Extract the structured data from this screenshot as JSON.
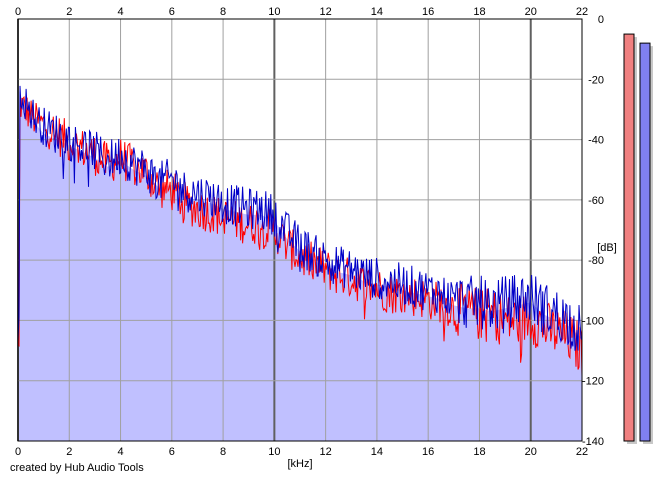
{
  "chart_data": {
    "type": "area",
    "xlabel": "[kHz]",
    "ylabel": "[dB]",
    "xlim": [
      0,
      22
    ],
    "ylim": [
      -140,
      0
    ],
    "x_ticks": [
      0,
      2,
      4,
      6,
      8,
      10,
      12,
      14,
      16,
      18,
      20,
      22
    ],
    "y_ticks": [
      0,
      -20,
      -40,
      -60,
      -80,
      -100,
      -120,
      -140
    ],
    "grid": true,
    "credit": "created by Hub Audio Tools",
    "series": [
      {
        "color": "#ff0000",
        "points": [
          [
            0.05,
            -28
          ],
          [
            0.3,
            -30
          ],
          [
            0.6,
            -33
          ],
          [
            1,
            -35
          ],
          [
            1.5,
            -38
          ],
          [
            2,
            -41
          ],
          [
            2.5,
            -43
          ],
          [
            3,
            -45
          ],
          [
            3.5,
            -48
          ],
          [
            4,
            -46
          ],
          [
            4.5,
            -49
          ],
          [
            5,
            -51
          ],
          [
            5.5,
            -56
          ],
          [
            6,
            -57
          ],
          [
            6.5,
            -61
          ],
          [
            7,
            -63
          ],
          [
            7.5,
            -64
          ],
          [
            8,
            -66
          ],
          [
            8.5,
            -67
          ],
          [
            9,
            -68
          ],
          [
            9.5,
            -68
          ],
          [
            10,
            -70
          ],
          [
            10.5,
            -75
          ],
          [
            11,
            -79
          ],
          [
            11.5,
            -81
          ],
          [
            12,
            -83
          ],
          [
            12.5,
            -85
          ],
          [
            13,
            -86
          ],
          [
            13.5,
            -88
          ],
          [
            14,
            -89
          ],
          [
            14.5,
            -91
          ],
          [
            15,
            -91
          ],
          [
            15.5,
            -92
          ],
          [
            16,
            -93
          ],
          [
            16.5,
            -94
          ],
          [
            17,
            -96
          ],
          [
            17.5,
            -97
          ],
          [
            18,
            -98
          ],
          [
            18.5,
            -98
          ],
          [
            19,
            -100
          ],
          [
            19.5,
            -100
          ],
          [
            20,
            -99
          ],
          [
            20.5,
            -102
          ],
          [
            21,
            -104
          ],
          [
            21.5,
            -106
          ],
          [
            22,
            -110
          ]
        ]
      },
      {
        "color": "#0000c8",
        "points": [
          [
            0.05,
            -22
          ],
          [
            0.3,
            -28
          ],
          [
            0.6,
            -32
          ],
          [
            1,
            -36
          ],
          [
            1.5,
            -38
          ],
          [
            2,
            -40
          ],
          [
            2.5,
            -42
          ],
          [
            3,
            -44
          ],
          [
            3.5,
            -47
          ],
          [
            4,
            -45
          ],
          [
            4.5,
            -48
          ],
          [
            5,
            -50
          ],
          [
            5.5,
            -54
          ],
          [
            6,
            -53
          ],
          [
            6.5,
            -57
          ],
          [
            7,
            -58
          ],
          [
            7.5,
            -59
          ],
          [
            8,
            -61
          ],
          [
            8.5,
            -62
          ],
          [
            9,
            -63
          ],
          [
            9.5,
            -63
          ],
          [
            10,
            -65
          ],
          [
            10.5,
            -71
          ],
          [
            11,
            -75
          ],
          [
            11.5,
            -78
          ],
          [
            12,
            -80
          ],
          [
            12.5,
            -82
          ],
          [
            13,
            -83
          ],
          [
            13.5,
            -85
          ],
          [
            14,
            -86
          ],
          [
            14.5,
            -87
          ],
          [
            15,
            -88
          ],
          [
            15.5,
            -89
          ],
          [
            16,
            -90
          ],
          [
            16.5,
            -91
          ],
          [
            17,
            -93
          ],
          [
            17.5,
            -94
          ],
          [
            18,
            -94
          ],
          [
            18.5,
            -95
          ],
          [
            19,
            -94
          ],
          [
            19.5,
            -93
          ],
          [
            20,
            -92
          ],
          [
            20.5,
            -96
          ],
          [
            21,
            -98
          ],
          [
            21.5,
            -100
          ],
          [
            22,
            -104
          ]
        ]
      }
    ],
    "area_fill": "#c0c0ff",
    "level_meters": [
      {
        "color": "#f08080",
        "level": -5
      },
      {
        "color": "#8080f0",
        "level": -8
      }
    ]
  }
}
